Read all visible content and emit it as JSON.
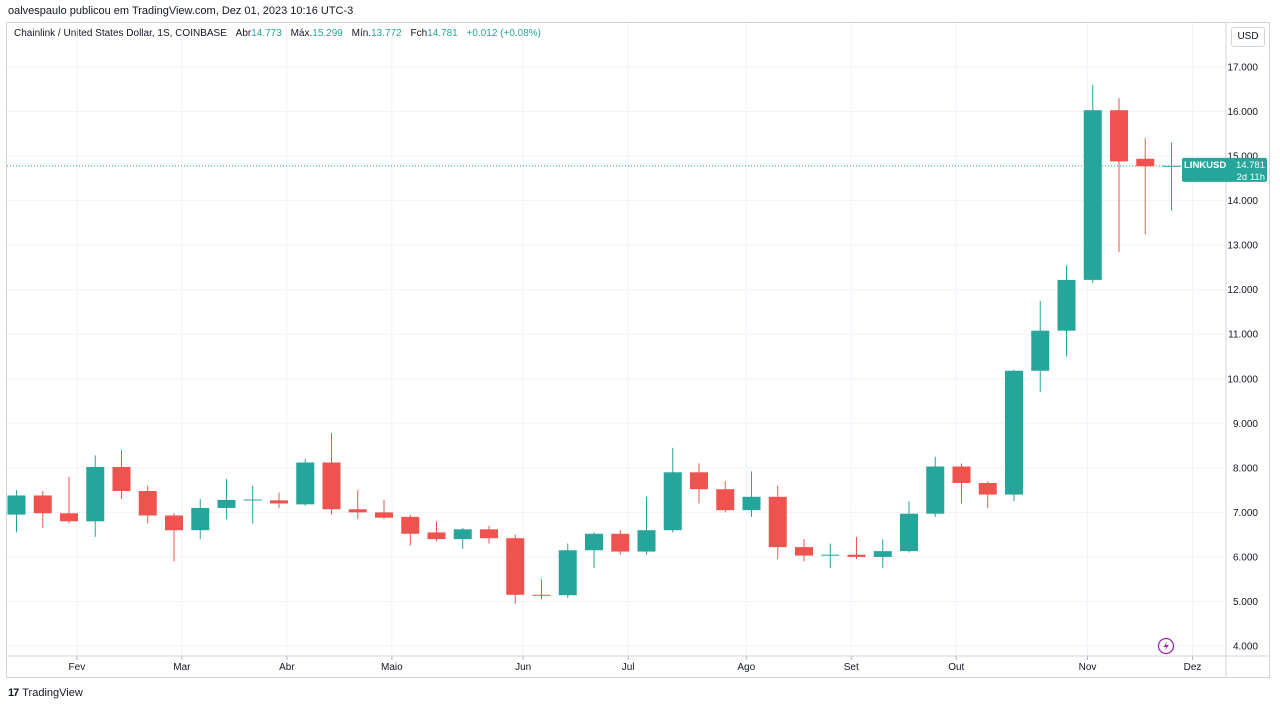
{
  "header": {
    "credit": "oalvespaulo publicou em TradingView.com, Dez 01, 2023 10:16 UTC-3"
  },
  "legend": {
    "symbol": "Chainlink / United States Dollar, 1S, COINBASE",
    "open_label": "Abr",
    "open": "14.773",
    "high_label": "Máx.",
    "high": "15.299",
    "low_label": "Mín.",
    "low": "13.772",
    "close_label": "Fch",
    "close": "14.781",
    "change": "+0.012 (+0.08%)"
  },
  "axis": {
    "currency": "USD",
    "price_tag_symbol": "LINKUSD",
    "price_tag_value": "14.781",
    "price_tag_countdown": "2d 11h"
  },
  "footer": {
    "logo": "17",
    "brand": "TradingView"
  },
  "colors": {
    "up": "#26a69a",
    "down": "#ef5350",
    "grid": "#f0f3fa",
    "last_price": "#26a69a",
    "flash": "#9c27b0"
  },
  "chart_data": {
    "type": "candlestick",
    "title": "Chainlink / United States Dollar, 1S, COINBASE",
    "interval": "1S",
    "ylim": [
      3.8,
      17.4
    ],
    "y_scale": "linear",
    "y_ticks": [
      "4.000",
      "5.000",
      "6.000",
      "7.000",
      "8.000",
      "9.000",
      "10.000",
      "11.000",
      "12.000",
      "13.000",
      "14.000",
      "15.000",
      "16.000",
      "17.000"
    ],
    "x_ticks": [
      {
        "label": "Fev",
        "index": 2.3
      },
      {
        "label": "Mar",
        "index": 6.3
      },
      {
        "label": "Abr",
        "index": 10.3
      },
      {
        "label": "Maio",
        "index": 14.3
      },
      {
        "label": "Jun",
        "index": 19.3
      },
      {
        "label": "Jul",
        "index": 23.3
      },
      {
        "label": "Ago",
        "index": 27.8
      },
      {
        "label": "Set",
        "index": 31.8
      },
      {
        "label": "Out",
        "index": 35.8
      },
      {
        "label": "Nov",
        "index": 40.8
      },
      {
        "label": "Dez",
        "index": 44.8
      }
    ],
    "grid": true,
    "last_price": 14.781,
    "candles": [
      {
        "o": 6.95,
        "h": 7.5,
        "l": 6.55,
        "c": 7.38
      },
      {
        "o": 7.38,
        "h": 7.48,
        "l": 6.65,
        "c": 6.98
      },
      {
        "o": 6.98,
        "h": 7.8,
        "l": 6.75,
        "c": 6.8
      },
      {
        "o": 6.8,
        "h": 8.28,
        "l": 6.45,
        "c": 8.02
      },
      {
        "o": 8.02,
        "h": 8.4,
        "l": 7.3,
        "c": 7.48
      },
      {
        "o": 7.48,
        "h": 7.6,
        "l": 6.75,
        "c": 6.93
      },
      {
        "o": 6.93,
        "h": 6.98,
        "l": 5.9,
        "c": 6.6
      },
      {
        "o": 6.6,
        "h": 7.3,
        "l": 6.4,
        "c": 7.1
      },
      {
        "o": 7.1,
        "h": 7.75,
        "l": 6.85,
        "c": 7.28
      },
      {
        "o": 7.27,
        "h": 7.6,
        "l": 6.75,
        "c": 7.29
      },
      {
        "o": 7.27,
        "h": 7.45,
        "l": 7.1,
        "c": 7.2
      },
      {
        "o": 7.18,
        "h": 8.2,
        "l": 7.15,
        "c": 8.12
      },
      {
        "o": 8.12,
        "h": 8.78,
        "l": 6.95,
        "c": 7.07
      },
      {
        "o": 7.07,
        "h": 7.5,
        "l": 6.85,
        "c": 7.0
      },
      {
        "o": 7.0,
        "h": 7.28,
        "l": 6.85,
        "c": 6.88
      },
      {
        "o": 6.9,
        "h": 6.95,
        "l": 6.25,
        "c": 6.52
      },
      {
        "o": 6.55,
        "h": 6.8,
        "l": 6.35,
        "c": 6.4
      },
      {
        "o": 6.4,
        "h": 6.65,
        "l": 6.18,
        "c": 6.62
      },
      {
        "o": 6.62,
        "h": 6.7,
        "l": 6.3,
        "c": 6.42
      },
      {
        "o": 6.42,
        "h": 6.5,
        "l": 4.95,
        "c": 5.15
      },
      {
        "o": 5.15,
        "h": 5.5,
        "l": 5.05,
        "c": 5.14
      },
      {
        "o": 5.14,
        "h": 6.3,
        "l": 5.08,
        "c": 6.15
      },
      {
        "o": 6.15,
        "h": 6.55,
        "l": 5.75,
        "c": 6.52
      },
      {
        "o": 6.52,
        "h": 6.6,
        "l": 6.05,
        "c": 6.12
      },
      {
        "o": 6.12,
        "h": 7.35,
        "l": 6.05,
        "c": 6.6
      },
      {
        "o": 6.6,
        "h": 8.45,
        "l": 6.55,
        "c": 7.9
      },
      {
        "o": 7.9,
        "h": 8.1,
        "l": 7.2,
        "c": 7.52
      },
      {
        "o": 7.52,
        "h": 7.7,
        "l": 7.0,
        "c": 7.05
      },
      {
        "o": 7.05,
        "h": 7.92,
        "l": 6.9,
        "c": 7.35
      },
      {
        "o": 7.35,
        "h": 7.6,
        "l": 5.95,
        "c": 6.22
      },
      {
        "o": 6.22,
        "h": 6.4,
        "l": 5.9,
        "c": 6.03
      },
      {
        "o": 6.03,
        "h": 6.3,
        "l": 5.75,
        "c": 6.05
      },
      {
        "o": 6.05,
        "h": 6.45,
        "l": 5.95,
        "c": 6.0
      },
      {
        "o": 6.0,
        "h": 6.4,
        "l": 5.75,
        "c": 6.13
      },
      {
        "o": 6.13,
        "h": 7.25,
        "l": 6.1,
        "c": 6.97
      },
      {
        "o": 6.97,
        "h": 8.25,
        "l": 6.9,
        "c": 8.03
      },
      {
        "o": 8.03,
        "h": 8.1,
        "l": 7.2,
        "c": 7.66
      },
      {
        "o": 7.66,
        "h": 7.7,
        "l": 7.1,
        "c": 7.4
      },
      {
        "o": 7.4,
        "h": 10.2,
        "l": 7.25,
        "c": 10.18
      },
      {
        "o": 10.18,
        "h": 11.75,
        "l": 9.7,
        "c": 11.08
      },
      {
        "o": 11.08,
        "h": 12.55,
        "l": 10.5,
        "c": 12.22
      },
      {
        "o": 12.22,
        "h": 16.6,
        "l": 12.15,
        "c": 16.03
      },
      {
        "o": 16.03,
        "h": 16.3,
        "l": 12.85,
        "c": 14.88
      },
      {
        "o": 14.94,
        "h": 15.4,
        "l": 13.25,
        "c": 14.77
      },
      {
        "o": 14.773,
        "h": 15.299,
        "l": 13.772,
        "c": 14.781
      }
    ]
  }
}
